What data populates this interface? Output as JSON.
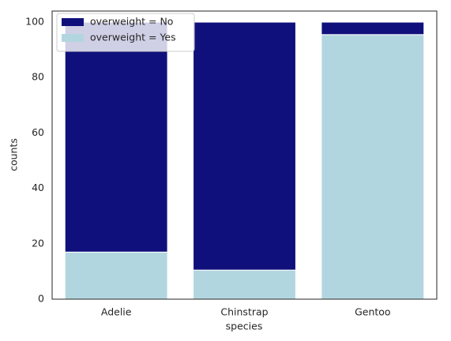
{
  "chart_data": {
    "type": "stacked_bar",
    "x_label": "species",
    "y_label": "counts",
    "categories": [
      "Adelie",
      "Chinstrap",
      "Gentoo"
    ],
    "series": [
      {
        "name": "overweight = Yes",
        "color": "#b2d6e0",
        "values": [
          17,
          10.5,
          95.5
        ]
      },
      {
        "name": "overweight = No",
        "color": "#10107c",
        "values": [
          83,
          89.5,
          4.5
        ]
      }
    ],
    "legend_order": [
      1,
      0
    ],
    "ylim": [
      0,
      104
    ],
    "yticks": [
      0,
      20,
      40,
      60,
      80,
      100
    ],
    "legend": "upper left",
    "grid": false
  }
}
